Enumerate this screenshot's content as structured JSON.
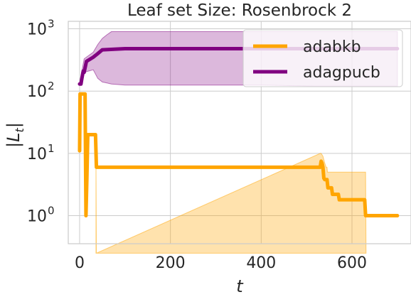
{
  "chart_data": {
    "type": "line",
    "title": "Leaf set Size: Rosenbrock 2",
    "xlabel": "t",
    "ylabel": "|L_t|",
    "xlim": [
      -25,
      730
    ],
    "ylim_log10": [
      -0.45,
      3.12
    ],
    "yscale": "log",
    "grid": true,
    "legend_placement": "top-right",
    "x_ticks": [
      {
        "value": 0,
        "label": "0"
      },
      {
        "value": 200,
        "label": "200"
      },
      {
        "value": 400,
        "label": "400"
      },
      {
        "value": 600,
        "label": "600"
      }
    ],
    "y_ticks": [
      {
        "value": 1,
        "base": "10",
        "exp": "0"
      },
      {
        "value": 10,
        "base": "10",
        "exp": "1"
      },
      {
        "value": 100,
        "base": "10",
        "exp": "2"
      },
      {
        "value": 1000,
        "base": "10",
        "exp": "3"
      }
    ],
    "series": [
      {
        "name": "adabkb",
        "color": "#ffa500",
        "line": [
          [
            0,
            11
          ],
          [
            1,
            90
          ],
          [
            3,
            90
          ],
          [
            5,
            90
          ],
          [
            8,
            90
          ],
          [
            12,
            90
          ],
          [
            14,
            1
          ],
          [
            16,
            4
          ],
          [
            18,
            20
          ],
          [
            23,
            20
          ],
          [
            30,
            20
          ],
          [
            35,
            20
          ],
          [
            37,
            6
          ],
          [
            60,
            6
          ],
          [
            200,
            6
          ],
          [
            400,
            6
          ],
          [
            530,
            6
          ],
          [
            532,
            7.5
          ],
          [
            534,
            7
          ],
          [
            536,
            6
          ],
          [
            538,
            4
          ],
          [
            540,
            3.8
          ],
          [
            545,
            3.8
          ],
          [
            547,
            2.8
          ],
          [
            555,
            2.8
          ],
          [
            557,
            2.2
          ],
          [
            570,
            2.2
          ],
          [
            572,
            1.8
          ],
          [
            600,
            1.8
          ],
          [
            605,
            1.8
          ],
          [
            610,
            1.8
          ],
          [
            628,
            1.8
          ],
          [
            630,
            1
          ],
          [
            650,
            1
          ],
          [
            700,
            1
          ]
        ],
        "band": [
          [
            36,
            0.25,
            10
          ],
          [
            37,
            0.25,
            0.25
          ],
          [
            530,
            0.25,
            10
          ],
          [
            532,
            0.25,
            10
          ],
          [
            536,
            0.25,
            9
          ],
          [
            540,
            0.25,
            7
          ],
          [
            543,
            0.25,
            6
          ],
          [
            545,
            0.25,
            6
          ],
          [
            546,
            0.25,
            5
          ],
          [
            630,
            0.25,
            5
          ],
          [
            631,
            0.25,
            0.25
          ]
        ]
      },
      {
        "name": "adagpucb",
        "color": "#800080",
        "line": [
          [
            0,
            130
          ],
          [
            3,
            130
          ],
          [
            5,
            160
          ],
          [
            8,
            210
          ],
          [
            10,
            200
          ],
          [
            15,
            300
          ],
          [
            30,
            350
          ],
          [
            40,
            400
          ],
          [
            50,
            460
          ],
          [
            100,
            480
          ],
          [
            200,
            480
          ],
          [
            400,
            480
          ],
          [
            600,
            480
          ],
          [
            700,
            480
          ]
        ],
        "band": [
          [
            0,
            130,
            135
          ],
          [
            10,
            200,
            330
          ],
          [
            30,
            220,
            420
          ],
          [
            40,
            160,
            560
          ],
          [
            50,
            140,
            700
          ],
          [
            60,
            135,
            800
          ],
          [
            70,
            130,
            900
          ],
          [
            100,
            125,
            900
          ],
          [
            200,
            125,
            900
          ],
          [
            400,
            125,
            900
          ],
          [
            520,
            120,
            900
          ],
          [
            650,
            120,
            900
          ],
          [
            700,
            120,
            900
          ]
        ]
      }
    ]
  }
}
